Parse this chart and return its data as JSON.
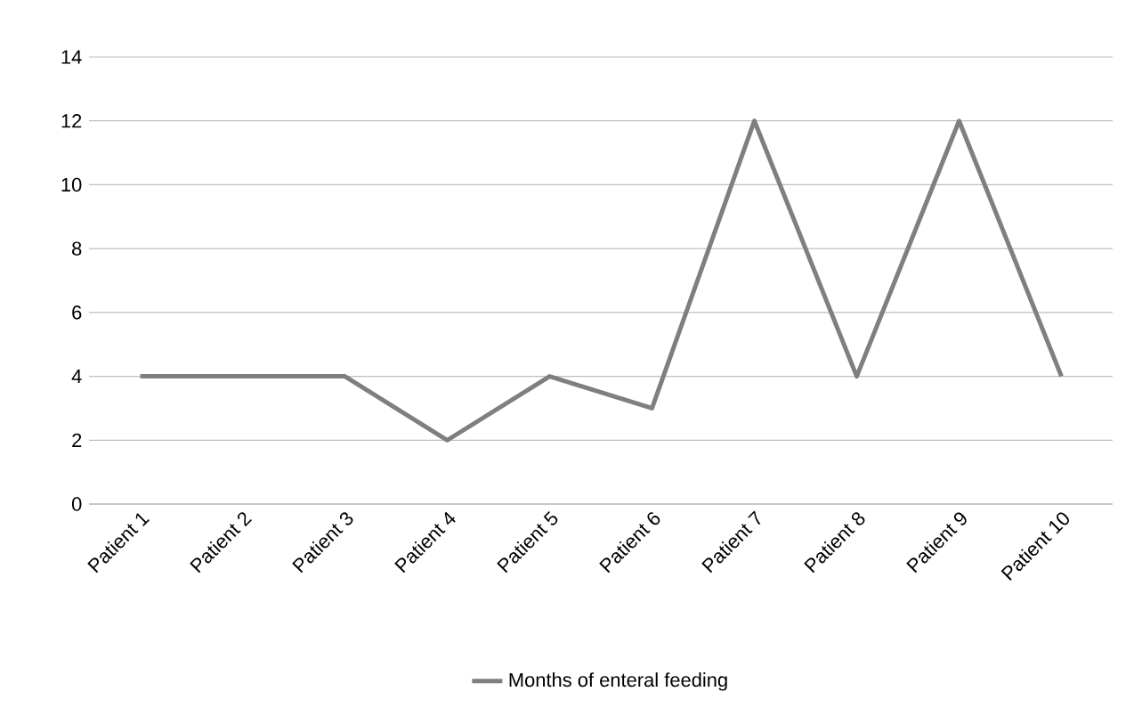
{
  "chart_data": {
    "type": "line",
    "categories": [
      "Patient 1",
      "Patient 2",
      "Patient 3",
      "Patient 4",
      "Patient 5",
      "Patient 6",
      "Patient 7",
      "Patient 8",
      "Patient 9",
      "Patient 10"
    ],
    "series": [
      {
        "name": "Months of enteral feeding",
        "color": "#7f7f7f",
        "values": [
          4,
          4,
          4,
          2,
          4,
          3,
          12,
          4,
          12,
          4
        ]
      }
    ],
    "ylim": [
      0,
      14
    ],
    "yticks": [
      0,
      2,
      4,
      6,
      8,
      10,
      12,
      14
    ],
    "grid": "y",
    "legend": "bottom",
    "line_style": "solid"
  }
}
